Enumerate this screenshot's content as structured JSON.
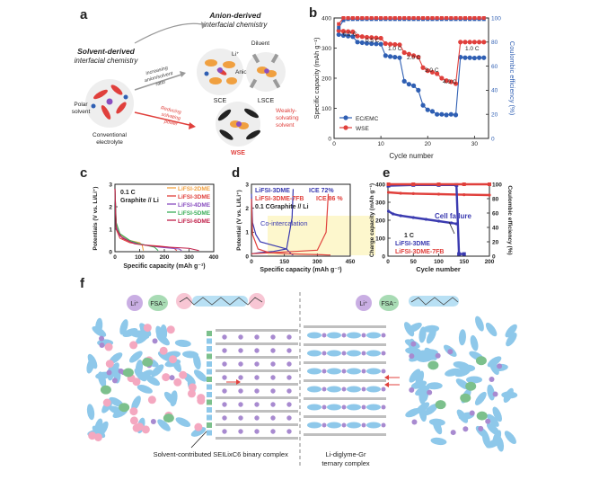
{
  "panels": {
    "a": {
      "label": "a",
      "anion_title_1": "Anion-derived",
      "anion_title_2": "interfacial chemistry",
      "solvent_title_1": "Solvent-derived",
      "solvent_title_2": "interfacial chemistry",
      "diluent": "Diluent",
      "li_plus": "Li⁺",
      "anion": "Anion",
      "arrow_up_1": "increasing",
      "arrow_up_2": "anion/solvent",
      "arrow_up_3": "ratio",
      "sce": "SCE",
      "lsce": "LSCE",
      "polar_1": "Polar",
      "polar_2": "solvent",
      "conv_1": "Conventional",
      "conv_2": "electrolyte",
      "reduce_1": "Reducing",
      "reduce_2": "solvating",
      "reduce_3": "power",
      "weak_1": "Weakly-",
      "weak_2": "solvating",
      "weak_3": "solvent",
      "wse": "WSE"
    },
    "b": {
      "label": "b",
      "ylabel": "Specific capacity (mAh g⁻¹)",
      "ylabel2": "Coulombic efficiency (%)",
      "xlabel": "Cycle number",
      "legend": [
        "EC/EMC",
        "WSE"
      ],
      "rate_labels": [
        "0.2 C",
        "0.5 C",
        "1.0 C",
        "2.0 C",
        "3.0 C",
        "4.0 C",
        "1.0 C"
      ]
    },
    "c": {
      "label": "c",
      "rate": "0.1 C",
      "cell": "Graphite // Li",
      "ylabel": "Potentials (V vs. Li/Li⁺)",
      "xlabel": "Specific capacity (mAh g⁻¹)",
      "legend": [
        "LiFSI-2DME",
        "LiFSI-3DME",
        "LiFSI-4DME",
        "LiFSI-5DME",
        "LiFSI-6DME"
      ]
    },
    "d": {
      "label": "d",
      "leg1": "LiFSI-3DME",
      "ice1": "ICE 72%",
      "leg2": "LiFSI-3DME-7FB",
      "ice2": "ICE 86 %",
      "cell": "0.1 CGraphite // Li",
      "cointer": "Co-intercalation",
      "ylabel": "Potential (V vs. Li/Li⁺)",
      "xlabel": "Specific capacity (mAh g⁻¹)"
    },
    "e": {
      "label": "e",
      "cell_failure": "Cell failure",
      "rate": "1 C",
      "leg1": "LiFSI-3DME",
      "leg2": "LiFSI-3DME-7FB",
      "ylabel": "Charge capacity (mAh g⁻¹)",
      "ylabel2": "Coulombic efficiency (%)",
      "xlabel": "Cycle number"
    },
    "f": {
      "label": "f",
      "li": "Li⁺",
      "fsa": "FSA⁻",
      "sei": "Solvent-contributed SEI",
      "binary_1": "LixC6 binary complex",
      "ternary_1": "Li-diglyme-Gr",
      "ternary_2": "ternary complex"
    }
  },
  "colors": {
    "blue": "#2f5fb3",
    "red": "#e0403c",
    "orange": "#f0a040",
    "pink": "#f4a8c0",
    "lightblue": "#8ec8ea",
    "green": "#7cc08c",
    "purple": "#a88ad0",
    "grey": "#bfbfbf"
  },
  "chart_data": [
    {
      "id": "b",
      "type": "line",
      "title": "",
      "xlabel": "Cycle number",
      "ylabel": "Specific capacity (mAh g⁻¹)",
      "y2label": "Coulombic efficiency (%)",
      "xlim": [
        0,
        33
      ],
      "ylim": [
        0,
        400
      ],
      "y2lim": [
        0,
        100
      ],
      "xticks": [
        0,
        10,
        20,
        30
      ],
      "yticks": [
        0,
        100,
        200,
        300,
        400
      ],
      "y2ticks": [
        0,
        20,
        40,
        60,
        80,
        100
      ],
      "series": [
        {
          "name": "EC/EMC",
          "color": "#2f5fb3",
          "axis": "left",
          "x": [
            1,
            2,
            3,
            4,
            5,
            6,
            7,
            8,
            9,
            10,
            11,
            12,
            13,
            14,
            15,
            16,
            17,
            18,
            19,
            20,
            21,
            22,
            23,
            24,
            25,
            26,
            27,
            28,
            29,
            30,
            31,
            32
          ],
          "values": [
            345,
            342,
            340,
            338,
            320,
            318,
            316,
            315,
            314,
            313,
            275,
            272,
            270,
            268,
            190,
            180,
            175,
            160,
            110,
            95,
            90,
            80,
            80,
            78,
            80,
            78,
            270,
            268,
            268,
            267,
            268,
            268
          ]
        },
        {
          "name": "WSE",
          "color": "#e0403c",
          "axis": "left",
          "x": [
            1,
            2,
            3,
            4,
            5,
            6,
            7,
            8,
            9,
            10,
            11,
            12,
            13,
            14,
            15,
            16,
            17,
            18,
            19,
            20,
            21,
            22,
            23,
            24,
            25,
            26,
            27,
            28,
            29,
            30,
            31,
            32
          ],
          "values": [
            358,
            356,
            355,
            354,
            340,
            338,
            336,
            335,
            334,
            333,
            315,
            313,
            312,
            311,
            285,
            280,
            275,
            270,
            235,
            225,
            220,
            215,
            200,
            192,
            188,
            182,
            320,
            320,
            320,
            320,
            320,
            320
          ]
        },
        {
          "name": "EC/EMC CE",
          "color": "#2f5fb3",
          "axis": "right",
          "x": [
            1,
            2,
            3,
            4,
            5,
            6,
            7,
            8,
            9,
            10,
            11,
            12,
            13,
            14,
            15,
            16,
            17,
            18,
            19,
            20,
            21,
            22,
            23,
            24,
            25,
            26,
            27,
            28,
            29,
            30,
            31,
            32
          ],
          "values": [
            92,
            98,
            99,
            99,
            99,
            99,
            99,
            99,
            99,
            99,
            99,
            99,
            99,
            99,
            99,
            99,
            99,
            99,
            99,
            99,
            99,
            99,
            99,
            99,
            99,
            99,
            99,
            99,
            99,
            99,
            99,
            99
          ]
        },
        {
          "name": "WSE CE",
          "color": "#e0403c",
          "axis": "right",
          "x": [
            1,
            2,
            3,
            4,
            5,
            6,
            7,
            8,
            9,
            10,
            11,
            12,
            13,
            14,
            15,
            16,
            17,
            18,
            19,
            20,
            21,
            22,
            23,
            24,
            25,
            26,
            27,
            28,
            29,
            30,
            31,
            32
          ],
          "values": [
            95,
            100,
            100,
            100,
            100,
            100,
            100,
            100,
            100,
            100,
            100,
            100,
            100,
            100,
            100,
            100,
            100,
            100,
            100,
            100,
            100,
            100,
            100,
            100,
            100,
            100,
            100,
            100,
            100,
            100,
            100,
            100
          ]
        }
      ]
    },
    {
      "id": "c",
      "type": "line",
      "xlabel": "Specific capacity (mAh g⁻¹)",
      "ylabel": "Potentials (V vs. Li/Li⁺)",
      "xlim": [
        0,
        400
      ],
      "ylim": [
        0,
        3
      ],
      "xticks": [
        0,
        100,
        200,
        300,
        400
      ],
      "yticks": [
        0,
        1,
        2,
        3
      ],
      "series": [
        {
          "name": "LiFSI-2DME",
          "color": "#f0a040",
          "x": [
            0,
            5,
            20,
            40,
            60,
            80,
            100,
            110,
            115
          ],
          "values": [
            2.8,
            1.2,
            0.8,
            0.6,
            0.5,
            0.45,
            0.4,
            0.3,
            0.05
          ]
        },
        {
          "name": "LiFSI-3DME",
          "color": "#e0403c",
          "x": [
            0,
            5,
            20,
            60,
            120,
            180,
            220,
            240,
            250
          ],
          "values": [
            2.8,
            1.0,
            0.6,
            0.4,
            0.3,
            0.25,
            0.2,
            0.15,
            0.05
          ]
        },
        {
          "name": "LiFSI-4DME",
          "color": "#8a4fc0",
          "x": [
            0,
            5,
            20,
            60,
            120,
            180,
            230,
            260,
            270
          ],
          "values": [
            2.8,
            1.1,
            0.7,
            0.45,
            0.3,
            0.2,
            0.15,
            0.12,
            0.05
          ]
        },
        {
          "name": "LiFSI-5DME",
          "color": "#3cae5a",
          "x": [
            0,
            5,
            20,
            60,
            100,
            140,
            160,
            175
          ],
          "values": [
            2.8,
            1.3,
            0.8,
            0.5,
            0.35,
            0.25,
            0.2,
            0.05
          ]
        },
        {
          "name": "LiFSI-6DME",
          "color": "#c0204a",
          "x": [
            0,
            5,
            30,
            80,
            150,
            220,
            300,
            340
          ],
          "values": [
            2.8,
            1.0,
            0.6,
            0.35,
            0.25,
            0.2,
            0.15,
            0.05
          ]
        }
      ]
    },
    {
      "id": "d",
      "type": "line",
      "xlabel": "Specific capacity (mAh g⁻¹)",
      "ylabel": "Potential (V vs. Li/Li⁺)",
      "xlim": [
        0,
        450
      ],
      "ylim": [
        0,
        3
      ],
      "xticks": [
        0,
        150,
        300,
        450
      ],
      "yticks": [
        0,
        1,
        2,
        3
      ],
      "series": [
        {
          "name": "LiFSI-3DME",
          "color": "#3a3ab0",
          "x": [
            0,
            5,
            20,
            40,
            80,
            120,
            160,
            180,
            190
          ],
          "values": [
            2.6,
            1.4,
            0.9,
            0.6,
            0.5,
            0.4,
            0.3,
            0.1,
            0.05
          ]
        },
        {
          "name": "LiFSI-3DME charge",
          "color": "#3a3ab0",
          "x": [
            0,
            40,
            100,
            160,
            185,
            190
          ],
          "values": [
            0.1,
            0.15,
            0.2,
            0.3,
            1.6,
            2.8
          ]
        },
        {
          "name": "LiFSI-3DME-7FB",
          "color": "#e0403c",
          "x": [
            0,
            5,
            30,
            80,
            160,
            240,
            320,
            350,
            360
          ],
          "values": [
            2.4,
            0.9,
            0.3,
            0.15,
            0.1,
            0.08,
            0.06,
            0.05,
            0.05
          ]
        },
        {
          "name": "LiFSI-3DME-7FB charge",
          "color": "#e0403c",
          "x": [
            0,
            100,
            200,
            300,
            340,
            350
          ],
          "values": [
            0.1,
            0.15,
            0.2,
            0.25,
            1.0,
            2.6
          ]
        }
      ]
    },
    {
      "id": "e",
      "type": "scatter",
      "xlabel": "Cycle number",
      "ylabel": "Charge capacity (mAh g⁻¹)",
      "y2label": "Coulombic efficiency (%)",
      "xlim": [
        0,
        200
      ],
      "ylim": [
        0,
        400
      ],
      "y2lim": [
        0,
        100
      ],
      "xticks": [
        0,
        50,
        100,
        150,
        200
      ],
      "yticks": [
        0,
        100,
        200,
        300,
        400
      ],
      "y2ticks": [
        0,
        20,
        40,
        60,
        80,
        100
      ],
      "series": [
        {
          "name": "LiFSI-3DME",
          "color": "#3a3ab0",
          "axis": "left",
          "x": [
            1,
            10,
            25,
            50,
            75,
            100,
            125,
            135
          ],
          "values": [
            250,
            235,
            225,
            215,
            205,
            195,
            185,
            180
          ]
        },
        {
          "name": "LiFSI-3DME-7FB",
          "color": "#e0403c",
          "axis": "left",
          "x": [
            1,
            25,
            50,
            100,
            150,
            200
          ],
          "values": [
            355,
            350,
            348,
            345,
            342,
            340
          ]
        },
        {
          "name": "LiFSI-3DME CE",
          "color": "#3a3ab0",
          "axis": "right",
          "x": [
            1,
            50,
            100,
            135,
            140,
            150
          ],
          "values": [
            98,
            99,
            99,
            99,
            3,
            3
          ]
        },
        {
          "name": "LiFSI-3DME-7FB CE",
          "color": "#e0403c",
          "axis": "right",
          "x": [
            1,
            50,
            100,
            150,
            200
          ],
          "values": [
            100,
            100,
            100,
            100,
            100
          ]
        }
      ]
    }
  ]
}
